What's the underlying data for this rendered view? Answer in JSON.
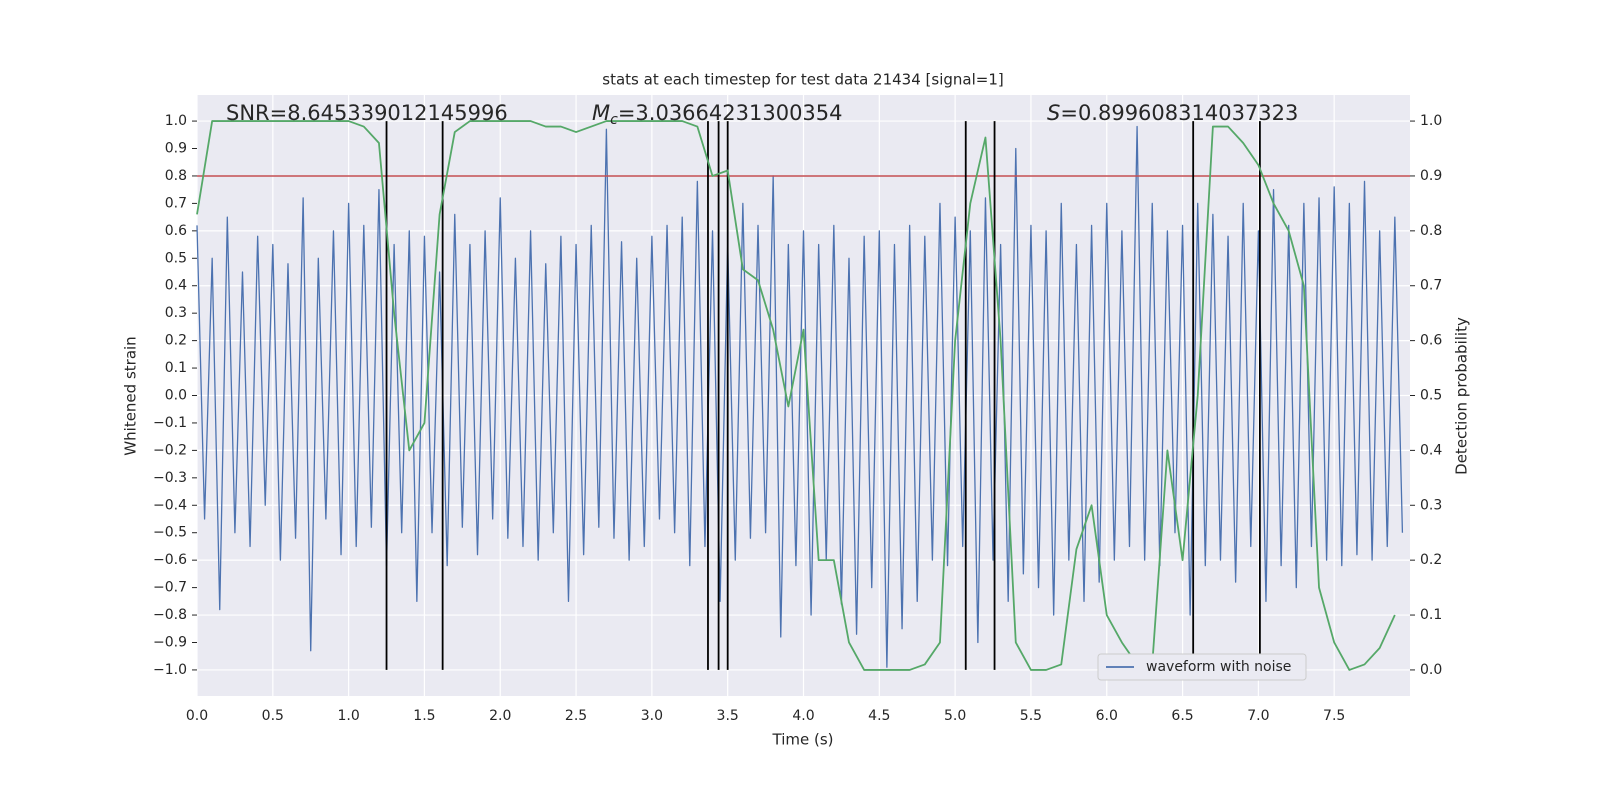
{
  "chart_data": {
    "type": "line",
    "title": "stats at each timestep for test data 21434 [signal=1]",
    "xlabel": "Time (s)",
    "ylabel": "Whitened strain",
    "y2label": "Detection probability",
    "annotations": [
      {
        "text": "SNR=8.645339012145996"
      },
      {
        "symbol": "M",
        "subscript": "c",
        "text": "=3.03664231300354"
      },
      {
        "symbol": "S",
        "text": "=0.899608314037323"
      }
    ],
    "xlim": [
      0,
      8
    ],
    "ylim": [
      -1.095,
      1.095
    ],
    "y2lim": [
      -0.0475,
      1.0475
    ],
    "xticks": [
      {
        "value": 0,
        "label": "0.0"
      },
      0.5,
      {
        "value": 1,
        "label": "1.0"
      },
      1.5,
      {
        "value": 2,
        "label": "2.0"
      },
      2.5,
      {
        "value": 3,
        "label": "3.0"
      },
      3.5,
      {
        "value": 4,
        "label": "4.0"
      },
      4.5,
      {
        "value": 5,
        "label": "5.0"
      },
      5.5,
      {
        "value": 6,
        "label": "6.0"
      },
      6.5,
      {
        "value": 7,
        "label": "7.0"
      },
      7.5
    ],
    "yticks": [
      {
        "value": -1,
        "label": "−1.0"
      },
      {
        "value": -0.9,
        "label": "−0.9"
      },
      {
        "value": -0.8,
        "label": "−0.8"
      },
      {
        "value": -0.7,
        "label": "−0.7"
      },
      {
        "value": -0.6,
        "label": "−0.6"
      },
      {
        "value": -0.5,
        "label": "−0.5"
      },
      {
        "value": -0.4,
        "label": "−0.4"
      },
      {
        "value": -0.3,
        "label": "−0.3"
      },
      {
        "value": -0.2,
        "label": "−0.2"
      },
      {
        "value": -0.1,
        "label": "−0.1"
      },
      {
        "value": 0,
        "label": "0.0"
      },
      0.1,
      0.2,
      0.3,
      0.4,
      0.5,
      0.6,
      0.7,
      0.8,
      0.9,
      {
        "value": 1,
        "label": "1.0"
      }
    ],
    "y2ticks": [
      {
        "value": 0,
        "label": "0.0"
      },
      0.1,
      0.2,
      0.3,
      0.4,
      0.5,
      0.6,
      0.7,
      0.8,
      0.9,
      {
        "value": 1,
        "label": "1.0"
      }
    ],
    "grid": true,
    "legend": "lower right",
    "hline": 0.8,
    "hline_color": "#c44e52",
    "vlines": [
      1.25,
      1.62,
      3.37,
      3.44,
      3.5,
      5.07,
      5.26,
      6.57,
      7.01
    ],
    "vline_color": "#000000",
    "series": [
      {
        "name": "waveform with noise",
        "color": "#4c72b0",
        "x": [
          0,
          0.05,
          0.1,
          0.15,
          0.2,
          0.25,
          0.3,
          0.35,
          0.4,
          0.45,
          0.5,
          0.55,
          0.6,
          0.65,
          0.7,
          0.75,
          0.8,
          0.85,
          0.9,
          0.95,
          1,
          1.05,
          1.1,
          1.15,
          1.2,
          1.25,
          1.3,
          1.35,
          1.4,
          1.45,
          1.5,
          1.55,
          1.6,
          1.65,
          1.7,
          1.75,
          1.8,
          1.85,
          1.9,
          1.95,
          2,
          2.05,
          2.1,
          2.15,
          2.2,
          2.25,
          2.3,
          2.35,
          2.4,
          2.45,
          2.5,
          2.55,
          2.6,
          2.65,
          2.7,
          2.75,
          2.8,
          2.85,
          2.9,
          2.95,
          3,
          3.05,
          3.1,
          3.15,
          3.2,
          3.25,
          3.3,
          3.35,
          3.4,
          3.45,
          3.5,
          3.55,
          3.6,
          3.65,
          3.7,
          3.75,
          3.8,
          3.85,
          3.9,
          3.95,
          4,
          4.05,
          4.1,
          4.15,
          4.2,
          4.25,
          4.3,
          4.35,
          4.4,
          4.45,
          4.5,
          4.55,
          4.6,
          4.65,
          4.7,
          4.75,
          4.8,
          4.85,
          4.9,
          4.95,
          5,
          5.05,
          5.1,
          5.15,
          5.2,
          5.25,
          5.3,
          5.35,
          5.4,
          5.45,
          5.5,
          5.55,
          5.6,
          5.65,
          5.7,
          5.75,
          5.8,
          5.85,
          5.9,
          5.95,
          6,
          6.05,
          6.1,
          6.15,
          6.2,
          6.25,
          6.3,
          6.35,
          6.4,
          6.45,
          6.5,
          6.55,
          6.6,
          6.65,
          6.7,
          6.75,
          6.8,
          6.85,
          6.9,
          6.95,
          7,
          7.05,
          7.1,
          7.15,
          7.2,
          7.25,
          7.3,
          7.35,
          7.4,
          7.45,
          7.5,
          7.55,
          7.6,
          7.65,
          7.7,
          7.75,
          7.8,
          7.85,
          7.9,
          7.95
        ],
        "values": [
          0.62,
          -0.45,
          0.5,
          -0.78,
          0.65,
          -0.5,
          0.45,
          -0.55,
          0.58,
          -0.4,
          0.55,
          -0.6,
          0.48,
          -0.52,
          0.72,
          -0.93,
          0.5,
          -0.45,
          0.6,
          -0.58,
          0.7,
          -0.55,
          0.62,
          -0.48,
          0.75,
          -0.62,
          0.55,
          -0.5,
          0.6,
          -0.75,
          0.58,
          -0.5,
          0.45,
          -0.62,
          0.66,
          -0.48,
          0.55,
          -0.58,
          0.6,
          -0.45,
          0.72,
          -0.52,
          0.5,
          -0.55,
          0.6,
          -0.6,
          0.48,
          -0.5,
          0.58,
          -0.75,
          0.55,
          -0.58,
          0.62,
          -0.48,
          0.97,
          -0.52,
          0.56,
          -0.6,
          0.5,
          -0.55,
          0.58,
          -0.45,
          0.62,
          -0.5,
          0.65,
          -0.62,
          0.78,
          -0.55,
          0.6,
          -0.75,
          0.55,
          -0.6,
          0.7,
          -0.52,
          0.62,
          -0.5,
          0.8,
          -0.88,
          0.55,
          -0.62,
          0.6,
          -0.8,
          0.55,
          -0.6,
          0.62,
          -0.76,
          0.5,
          -0.87,
          0.58,
          -0.7,
          0.6,
          -0.99,
          0.55,
          -0.85,
          0.62,
          -0.75,
          0.58,
          -0.6,
          0.7,
          -0.62,
          0.65,
          -0.55,
          0.6,
          -0.9,
          0.72,
          -0.6,
          0.55,
          -0.75,
          0.9,
          -0.65,
          0.62,
          -0.7,
          0.6,
          -0.8,
          0.7,
          -0.6,
          0.55,
          -0.75,
          0.62,
          -0.68,
          0.7,
          -0.6,
          0.6,
          -0.55,
          0.98,
          -0.6,
          0.7,
          -0.62,
          0.6,
          -0.5,
          0.62,
          -0.8,
          0.7,
          -0.62,
          0.66,
          -0.6,
          0.58,
          -0.68,
          0.7,
          -0.55,
          0.6,
          -0.75,
          0.75,
          -0.62,
          0.62,
          -0.7,
          0.7,
          -0.55,
          0.72,
          -0.6,
          0.76,
          -0.62,
          0.7,
          -0.58,
          0.78,
          -0.6,
          0.6,
          -0.55,
          0.65,
          -0.5
        ]
      },
      {
        "color": "#55a868",
        "axis": "y2",
        "x": [
          0,
          0.1,
          0.2,
          0.3,
          0.4,
          0.5,
          0.6,
          0.7,
          0.8,
          0.9,
          1,
          1.1,
          1.2,
          1.3,
          1.4,
          1.5,
          1.6,
          1.7,
          1.8,
          1.9,
          2,
          2.1,
          2.2,
          2.3,
          2.4,
          2.5,
          2.6,
          2.7,
          2.8,
          2.9,
          3,
          3.1,
          3.2,
          3.3,
          3.4,
          3.5,
          3.6,
          3.7,
          3.8,
          3.9,
          4,
          4.1,
          4.2,
          4.3,
          4.4,
          4.5,
          4.6,
          4.7,
          4.8,
          4.9,
          5,
          5.1,
          5.2,
          5.3,
          5.4,
          5.5,
          5.6,
          5.7,
          5.8,
          5.9,
          6,
          6.1,
          6.2,
          6.3,
          6.4,
          6.5,
          6.6,
          6.7,
          6.8,
          6.9,
          7,
          7.1,
          7.2,
          7.3,
          7.4,
          7.5,
          7.6,
          7.7,
          7.8,
          7.9
        ],
        "values": [
          0.83,
          1.0,
          1.0,
          1.0,
          1.0,
          1.0,
          1.0,
          1.0,
          1.0,
          1.0,
          1.0,
          0.99,
          0.96,
          0.65,
          0.4,
          0.45,
          0.83,
          0.98,
          1.0,
          1.0,
          1.0,
          1.0,
          1.0,
          0.99,
          0.99,
          0.98,
          0.99,
          1.0,
          1.0,
          1.0,
          1.0,
          1.0,
          1.0,
          0.99,
          0.9,
          0.91,
          0.73,
          0.71,
          0.62,
          0.48,
          0.62,
          0.2,
          0.2,
          0.05,
          0.0,
          0.0,
          0.0,
          0.0,
          0.01,
          0.05,
          0.6,
          0.85,
          0.97,
          0.6,
          0.05,
          0.0,
          0.0,
          0.01,
          0.22,
          0.3,
          0.1,
          0.05,
          0.01,
          0.01,
          0.4,
          0.2,
          0.5,
          0.99,
          0.99,
          0.96,
          0.92,
          0.85,
          0.8,
          0.7,
          0.15,
          0.05,
          0.0,
          0.01,
          0.04,
          0.1
        ]
      }
    ]
  }
}
